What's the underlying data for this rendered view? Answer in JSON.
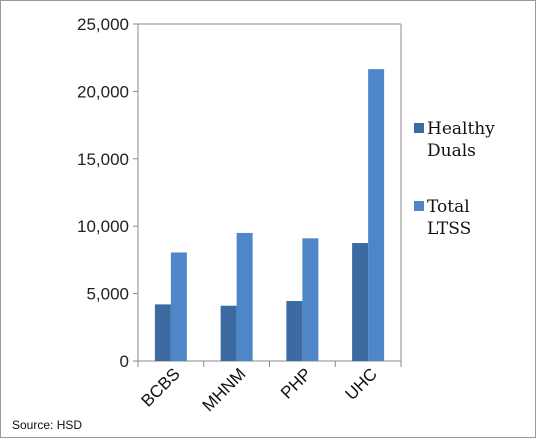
{
  "chart_data": {
    "type": "bar",
    "categories": [
      "BCBS",
      "MHNM",
      "PHP",
      "UHC"
    ],
    "series": [
      {
        "name": "Healthy Duals",
        "values": [
          4200,
          4100,
          4450,
          8750
        ],
        "color": "#3d6aa1"
      },
      {
        "name": "Total LTSS",
        "values": [
          8050,
          9500,
          9100,
          21650
        ],
        "color": "#4f86c8"
      }
    ],
    "y_ticks": [
      "0",
      "5,000",
      "10,000",
      "15,000",
      "20,000",
      "25,000"
    ],
    "ylim": [
      0,
      25000
    ],
    "grid": false,
    "legend": {
      "placement": "right",
      "entries": [
        {
          "lines": [
            "Healthy",
            "Duals"
          ]
        },
        {
          "lines": [
            "Total",
            "LTSS"
          ]
        }
      ]
    },
    "source_note": "Source: HSD"
  }
}
